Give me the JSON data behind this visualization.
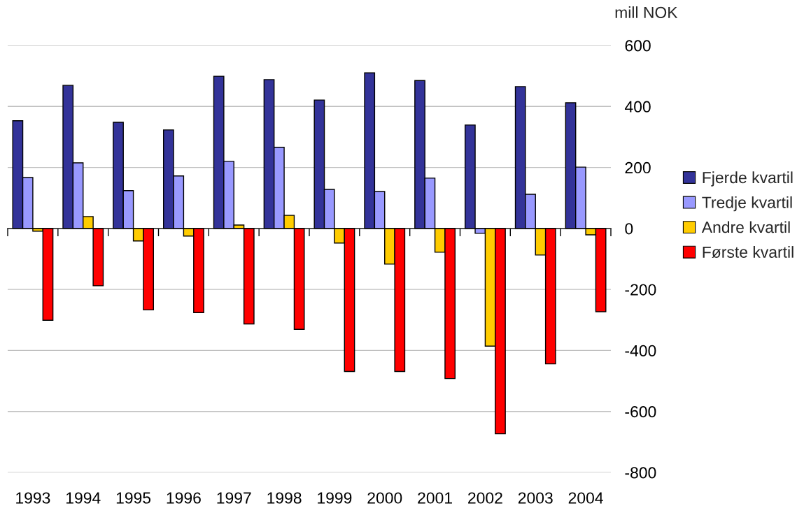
{
  "chart_data": {
    "type": "bar",
    "ylabel": "mill NOK",
    "categories": [
      "1993",
      "1994",
      "1995",
      "1996",
      "1997",
      "1998",
      "1999",
      "2000",
      "2001",
      "2002",
      "2003",
      "2004"
    ],
    "series": [
      {
        "name": "Fjerde kvartil",
        "color": "#333399",
        "values": [
          353,
          469,
          348,
          323,
          499,
          488,
          421,
          510,
          485,
          339,
          465,
          412
        ]
      },
      {
        "name": "Tredje kvartil",
        "color": "#9999ff",
        "values": [
          167,
          215,
          124,
          172,
          220,
          266,
          128,
          121,
          165,
          -16,
          112,
          201
        ]
      },
      {
        "name": "Andre kvartil",
        "color": "#ffcc00",
        "values": [
          -9,
          39,
          -41,
          -25,
          11,
          43,
          -48,
          -117,
          -78,
          -386,
          -87,
          -21
        ]
      },
      {
        "name": "Første kvartil",
        "color": "#ff0000",
        "values": [
          -301,
          -188,
          -267,
          -276,
          -313,
          -331,
          -469,
          -469,
          -492,
          -673,
          -444,
          -273
        ]
      }
    ],
    "ylim": [
      -800,
      600
    ],
    "yticks": [
      -800,
      -600,
      -400,
      -200,
      0,
      200,
      400,
      600
    ],
    "grid": "y",
    "legend": "right"
  }
}
